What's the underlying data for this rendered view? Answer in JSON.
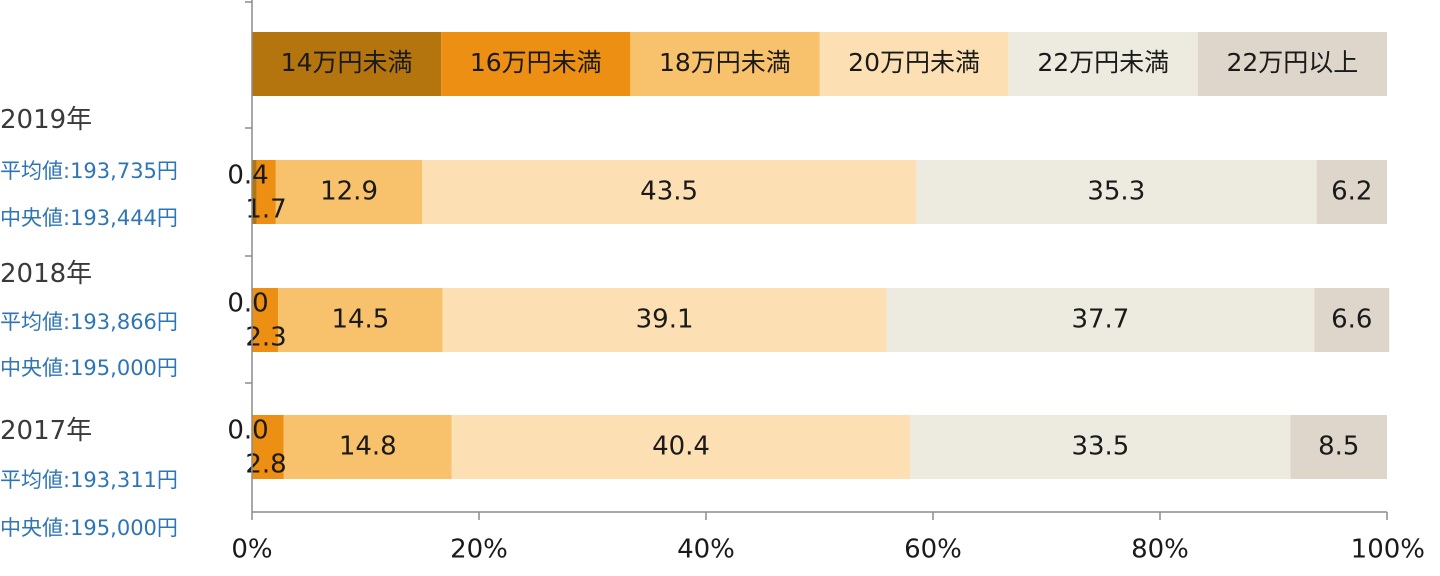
{
  "chart_data": {
    "type": "bar",
    "orientation": "horizontal",
    "stacked": true,
    "categories": [
      "2019年",
      "2018年",
      "2017年"
    ],
    "legend_position": "top",
    "xlim": [
      0,
      100
    ],
    "xticks": [
      "0%",
      "20%",
      "40%",
      "60%",
      "80%",
      "100%"
    ],
    "series": [
      {
        "name": "14万円未満",
        "color": "#b4750f",
        "values": [
          0.4,
          0.0,
          0.0
        ]
      },
      {
        "name": "16万円未満",
        "color": "#ec8f12",
        "values": [
          1.7,
          2.3,
          2.8
        ]
      },
      {
        "name": "18万円未満",
        "color": "#f8c16c",
        "values": [
          12.9,
          14.5,
          14.8
        ]
      },
      {
        "name": "20万円未満",
        "color": "#fce0b3",
        "values": [
          43.5,
          39.1,
          40.4
        ]
      },
      {
        "name": "22万円未満",
        "color": "#edeae0",
        "values": [
          35.3,
          37.7,
          33.5
        ]
      },
      {
        "name": "22万円以上",
        "color": "#ded5cb",
        "values": [
          6.2,
          6.6,
          8.5
        ]
      }
    ],
    "row_stats": [
      {
        "mean": "平均値:193,735円",
        "median": "中央値:193,444円"
      },
      {
        "mean": "平均値:193,866円",
        "median": "中央値:195,000円"
      },
      {
        "mean": "平均値:193,311円",
        "median": "中央値:195,000円"
      }
    ]
  }
}
